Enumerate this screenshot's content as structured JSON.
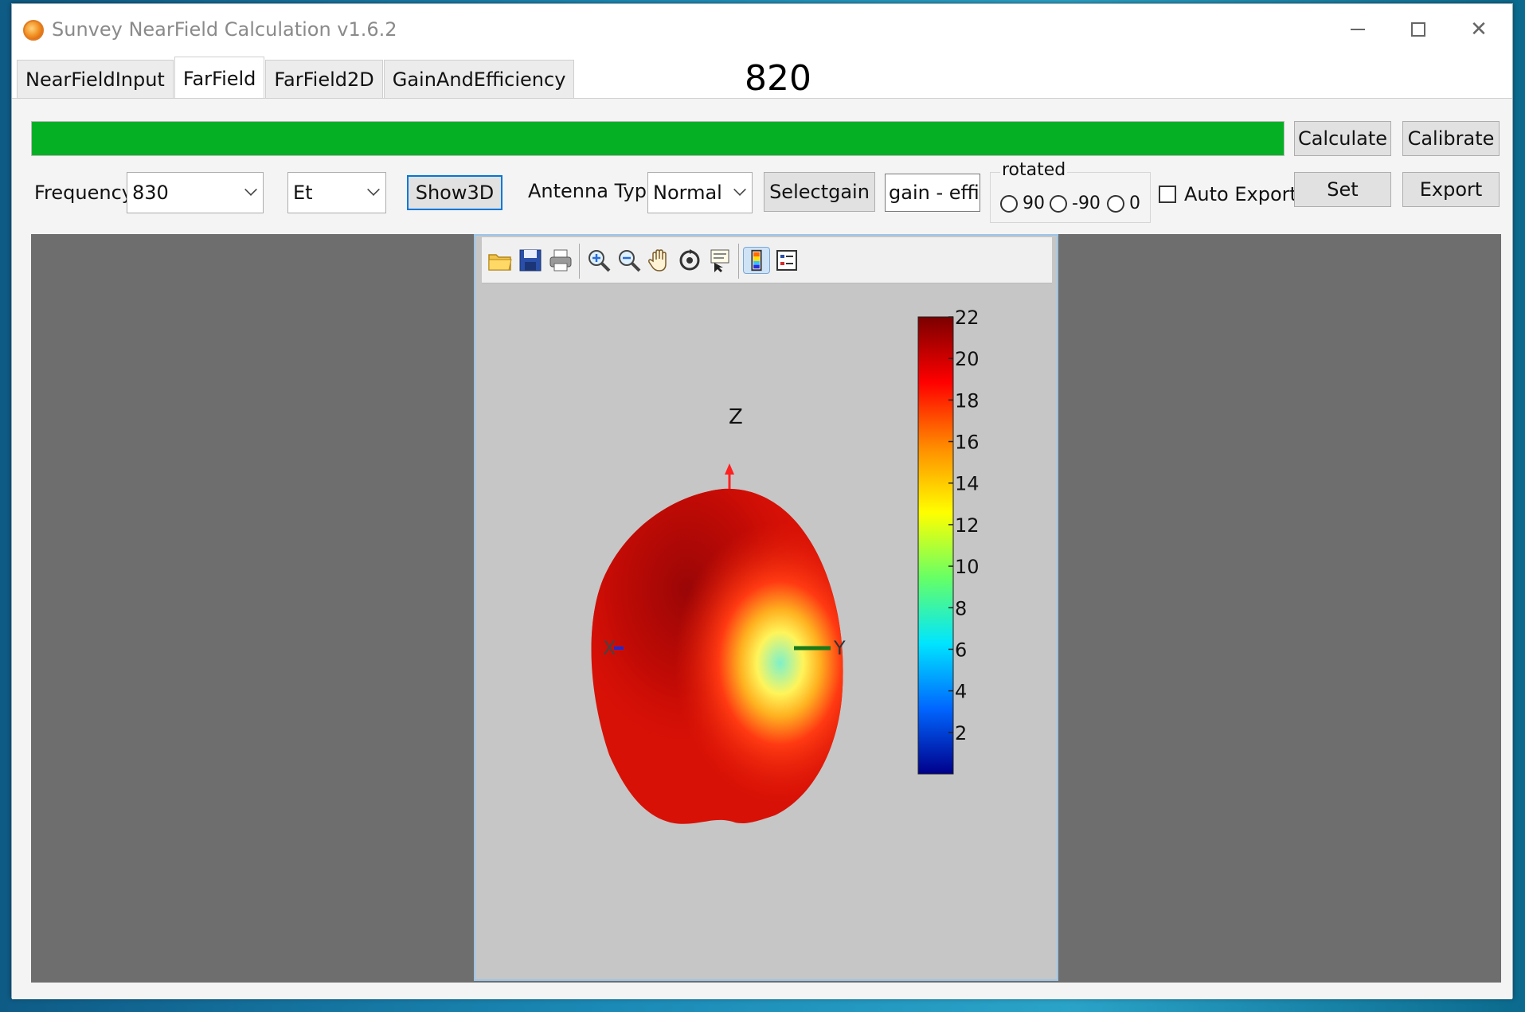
{
  "window": {
    "title": "Sunvey NearField Calculation v1.6.2"
  },
  "tabs": [
    {
      "label": "NearFieldInput"
    },
    {
      "label": "FarField"
    },
    {
      "label": "FarField2D"
    },
    {
      "label": "GainAndEfficiency"
    }
  ],
  "header_value": "820",
  "progress": {
    "fraction": 1.0,
    "color": "#06b025"
  },
  "toolbar": {
    "calculate": "Calculate",
    "calibrate": "Calibrate",
    "set": "Set",
    "export": "Export",
    "show3d": "Show3D",
    "selectgain": "Selectgain"
  },
  "frequency": {
    "label": "Frequency",
    "value": "830"
  },
  "field_component": {
    "value": "Et"
  },
  "antenna_type": {
    "label": "Antenna Type",
    "value": "Normal"
  },
  "gain_field": {
    "value": "gain - effi-C"
  },
  "rotated": {
    "title": "rotated",
    "options": [
      "90",
      "-90",
      "0"
    ]
  },
  "auto_export": {
    "label": "Auto Export",
    "checked": false
  },
  "plot": {
    "axes": {
      "z": "Z",
      "x": "X",
      "y": "Y"
    },
    "colorbar": {
      "min": 0,
      "max": 22,
      "ticks": [
        "22",
        "20",
        "18",
        "16",
        "14",
        "12",
        "10",
        "8",
        "6",
        "4",
        "2"
      ],
      "colors": [
        "#7a0000",
        "#ff0000",
        "#ff8c00",
        "#ffff00",
        "#66ff66",
        "#00e5ff",
        "#0066ff",
        "#00008b"
      ]
    },
    "toolbar_icons": [
      "open-folder-icon",
      "save-icon",
      "print-icon",
      "zoom-in-icon",
      "zoom-out-icon",
      "pan-hand-icon",
      "rotate-3d-icon",
      "data-cursor-icon",
      "colorbar-icon",
      "legend-icon"
    ]
  }
}
